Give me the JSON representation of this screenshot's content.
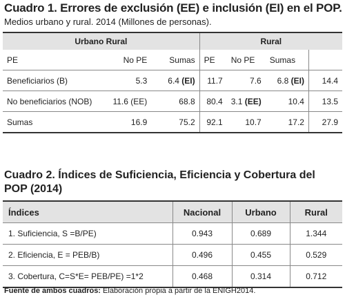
{
  "cuadro1": {
    "title": "Cuadro 1. Errores de exclusión (EE) e inclusión (EI) en el POP.",
    "subtitle": "Medios urbano y rural. 2014 (Millones de personas).",
    "group_headers": [
      "Urbano Rural",
      "Rural"
    ],
    "col_headers": [
      "PE",
      "No PE",
      "Sumas",
      "PE",
      "No PE",
      "Sumas",
      ""
    ],
    "rows": [
      {
        "label": "Beneficiarios (B)",
        "cells": [
          "5.3",
          "6.4",
          "(EI)",
          "11.7",
          "7.6",
          "6.8",
          "(EI)",
          "14.4"
        ]
      },
      {
        "label": "No beneficiarios (NOB)",
        "cells": [
          "11.6 (EE)",
          "68.8",
          "80.4",
          "3.1",
          "(EE)",
          "10.4",
          "13.5"
        ]
      },
      {
        "label": "Sumas",
        "cells": [
          "16.9",
          "75.2",
          "92.1",
          "10.7",
          "17.2",
          "27.9"
        ]
      }
    ]
  },
  "cuadro2": {
    "title": "Cuadro 2. Índices de Suficiencia, Eficiencia y Cobertura del POP (2014)",
    "headers": [
      "Índices",
      "Nacional",
      "Urbano",
      "Rural"
    ],
    "rows": [
      {
        "label": "1. Suficiencia, S =B/PE)",
        "values": [
          "0.943",
          "0.689",
          "1.344"
        ]
      },
      {
        "label": "2. Eficiencia, E = PEB/B)",
        "values": [
          "0.496",
          "0.455",
          "0.529"
        ]
      },
      {
        "label": "3. Cobertura, C=S*E= PEB/PE) =1*2",
        "values": [
          "0.468",
          "0.314",
          "0.712"
        ]
      }
    ]
  },
  "footer": {
    "bold": "Fuente de ambos cuadros:",
    "text": " Elaboración propia a partir de la ENIGH2014."
  }
}
